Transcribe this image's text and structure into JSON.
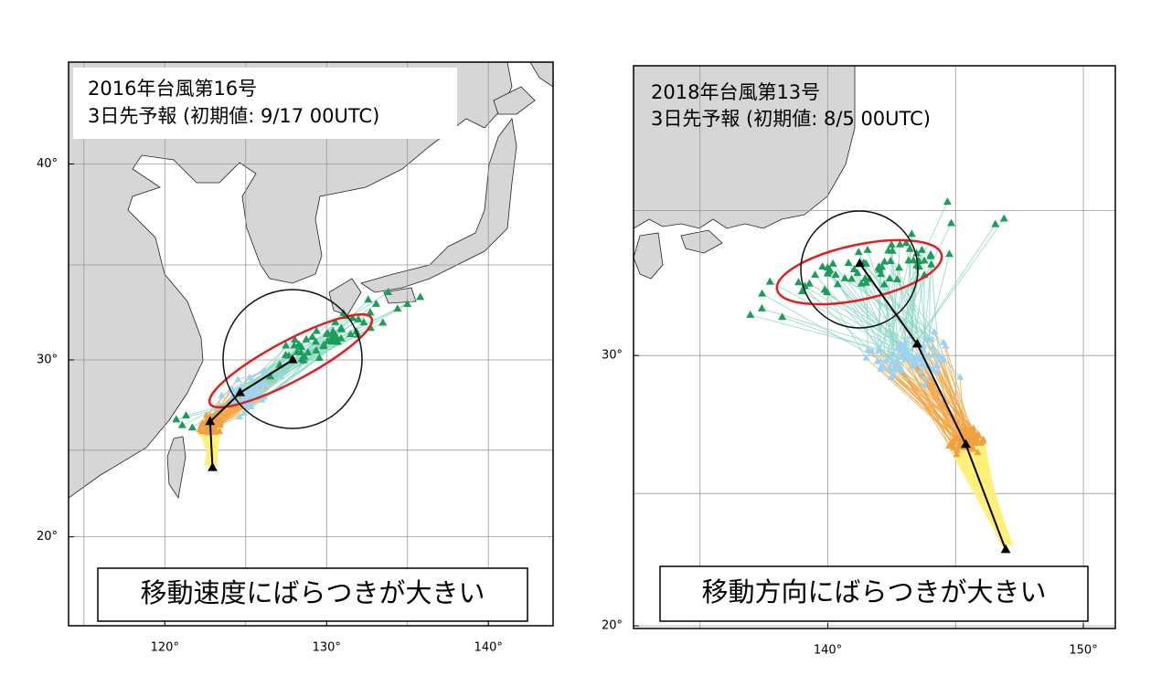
{
  "panels": [
    {
      "title": "2016年台風第16号",
      "subtitle": "3日先予報 (初期値: 9/17 00UTC)",
      "caption": "移動速度にばらつきが大きい",
      "lon_lim": [
        114.05,
        144.0
      ],
      "lat_lim": [
        14.7,
        44.7
      ],
      "lon_ticks": [
        {
          "value": 120,
          "label": "120°"
        },
        {
          "value": 130,
          "label": "130°"
        },
        {
          "value": 140,
          "label": "140°"
        }
      ],
      "lat_ticks": [
        {
          "value": 20,
          "label": "20°"
        },
        {
          "value": 30,
          "label": "30°"
        },
        {
          "value": 40,
          "label": "40°"
        }
      ],
      "lon_grid": [
        115,
        120,
        125,
        130,
        135,
        140
      ],
      "lat_grid": [
        20,
        25,
        30,
        35,
        40
      ],
      "mean_track": {
        "lon": [
          122.95,
          122.8,
          124.65,
          127.9
        ],
        "lat": [
          24.0,
          26.6,
          28.2,
          30.0
        ]
      }
    },
    {
      "title": "2018年台風第13号",
      "subtitle": "3日先予報 (初期値: 8/5 00UTC)",
      "caption": "移動方向にばらつきが大きい",
      "lon_lim": [
        132.4,
        151.25
      ],
      "lat_lim": [
        19.9,
        39.7
      ],
      "lon_ticks": [
        {
          "value": 140,
          "label": "140°"
        },
        {
          "value": 150,
          "label": "150°"
        }
      ],
      "lat_ticks": [
        {
          "value": 20,
          "label": "20°"
        },
        {
          "value": 30,
          "label": "30°"
        }
      ],
      "lon_grid": [
        135,
        140,
        145,
        150
      ],
      "lat_grid": [
        20,
        25,
        30,
        35
      ],
      "mean_track": {
        "lon": [
          146.96,
          145.4,
          143.5,
          141.25
        ],
        "lat": [
          22.9,
          26.8,
          30.4,
          33.2
        ]
      }
    }
  ]
}
